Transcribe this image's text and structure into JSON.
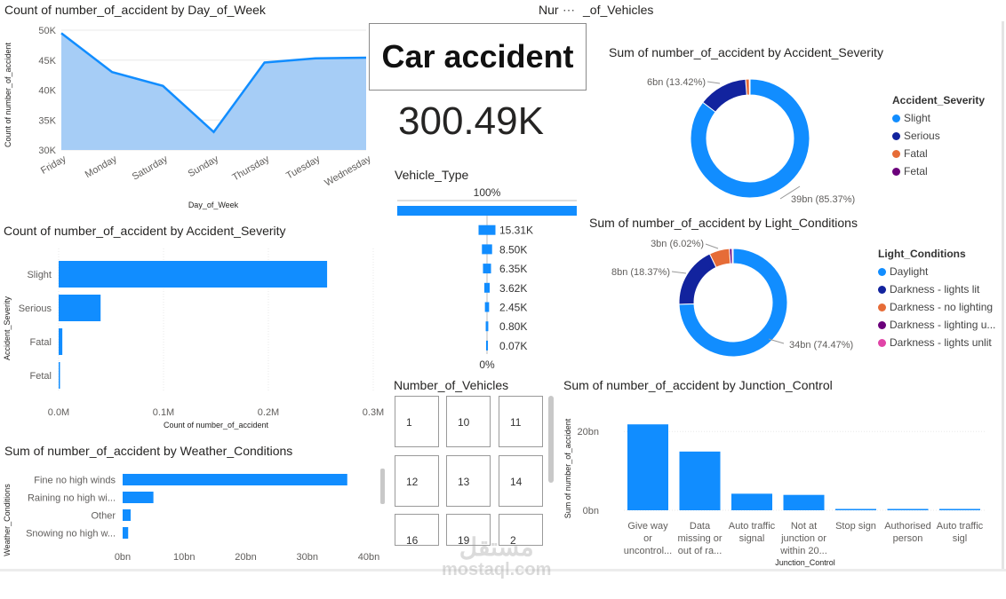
{
  "kpi": {
    "title": "Car accident",
    "value": "300.49K"
  },
  "header_partial": {
    "left": "Nur",
    "right": "_of_Vehicles"
  },
  "colors": {
    "accent": "#118DFF",
    "area_fill": "#a6cdf6",
    "dark_blue": "#12239E",
    "orange": "#E66C37",
    "purple": "#6B007B",
    "pink": "#E044A7",
    "grid": "#e8e8e8"
  },
  "chart_data": [
    {
      "id": "line_dow",
      "type": "area",
      "title": "Count of number_of_accident by Day_of_Week",
      "xlabel": "Day_of_Week",
      "ylabel": "Count of number_of_accident",
      "categories": [
        "Friday",
        "Monday",
        "Saturday",
        "Sunday",
        "Thursday",
        "Tuesday",
        "Wednesday"
      ],
      "values": [
        49500,
        43000,
        40700,
        33000,
        44600,
        45300,
        45400
      ],
      "ylim": [
        30000,
        50000
      ],
      "yticks": [
        "30K",
        "35K",
        "40K",
        "45K",
        "50K"
      ]
    },
    {
      "id": "bar_severity",
      "type": "bar",
      "title": "Count of number_of_accident by Accident_Severity",
      "xlabel": "Count of number_of_accident",
      "ylabel": "Accident_Severity",
      "categories": [
        "Slight",
        "Serious",
        "Fatal",
        "Fetal"
      ],
      "values": [
        256000,
        40000,
        3500,
        900
      ],
      "xlim": [
        0,
        300000
      ],
      "xticks": [
        "0.0M",
        "0.1M",
        "0.2M",
        "0.3M"
      ]
    },
    {
      "id": "bar_weather",
      "type": "bar",
      "title": "Sum of number_of_accident by Weather_Conditions",
      "xlabel": "",
      "ylabel": "Weather_Conditions",
      "categories": [
        "Fine no high winds",
        "Raining no high wi...",
        "Other",
        "Snowing no high w..."
      ],
      "values": [
        36.5,
        5.0,
        1.3,
        0.9
      ],
      "xlim": [
        0,
        40
      ],
      "xticks": [
        "0bn",
        "10bn",
        "20bn",
        "30bn",
        "40bn"
      ]
    },
    {
      "id": "funnel_vehicle",
      "type": "bar",
      "title": "Vehicle_Type",
      "top_label": "100%",
      "bottom_label": "0%",
      "values": [
        100,
        15.31,
        8.5,
        6.35,
        3.62,
        2.45,
        0.8,
        0.07
      ],
      "labels": [
        "",
        "15.31K",
        "8.50K",
        "6.35K",
        "3.62K",
        "2.45K",
        "0.80K",
        "0.07K"
      ]
    },
    {
      "id": "donut_severity",
      "type": "pie",
      "title": "Sum of number_of_accident by Accident_Severity",
      "legend_title": "Accident_Severity",
      "legend_position": "right",
      "slices": [
        {
          "name": "Slight",
          "value": 85.37,
          "color": "#118DFF"
        },
        {
          "name": "Serious",
          "value": 13.42,
          "color": "#12239E"
        },
        {
          "name": "Fatal",
          "value": 1.0,
          "color": "#E66C37"
        },
        {
          "name": "Fetal",
          "value": 0.21,
          "color": "#6B007B"
        }
      ],
      "labels": [
        "39bn (85.37%)",
        "6bn (13.42%)"
      ]
    },
    {
      "id": "donut_light",
      "type": "pie",
      "title": "Sum of number_of_accident by Light_Conditions",
      "legend_title": "Light_Conditions",
      "legend_position": "right",
      "slices": [
        {
          "name": "Daylight",
          "value": 74.47,
          "color": "#118DFF"
        },
        {
          "name": "Darkness - lights lit",
          "value": 18.37,
          "color": "#12239E"
        },
        {
          "name": "Darkness - no lighting",
          "value": 6.02,
          "color": "#E66C37"
        },
        {
          "name": "Darkness - lighting u...",
          "value": 0.8,
          "color": "#6B007B"
        },
        {
          "name": "Darkness - lights unlit",
          "value": 0.34,
          "color": "#E044A7"
        }
      ],
      "labels": [
        "34bn (74.47%)",
        "8bn (18.37%)",
        "3bn (6.02%)"
      ]
    },
    {
      "id": "bar_junction",
      "type": "bar",
      "title": "Sum of number_of_accident by Junction_Control",
      "xlabel": "Junction_Control",
      "ylabel": "Sum of number_of_accident",
      "categories": [
        [
          "Give way",
          "or",
          "uncontrol..."
        ],
        [
          "Data",
          "missing or",
          "out of ra..."
        ],
        [
          "Auto traffic",
          "signal"
        ],
        [
          "Not at",
          "junction or",
          "within 20..."
        ],
        [
          "Stop sign"
        ],
        [
          "Authorised",
          "person"
        ],
        [
          "Auto traffic",
          "sigl"
        ]
      ],
      "values": [
        21.8,
        14.9,
        4.2,
        3.9,
        0.3,
        0.2,
        0.15
      ],
      "ylim": [
        0,
        25
      ],
      "yticks": [
        {
          "v": 0,
          "t": "0bn"
        },
        {
          "v": 20,
          "t": "20bn"
        }
      ]
    }
  ],
  "slicer": {
    "title": "Number_of_Vehicles",
    "tiles": [
      "1",
      "10",
      "11",
      "12",
      "13",
      "14",
      "16",
      "19",
      "2"
    ]
  },
  "watermark": {
    "text": "mostaql.com"
  }
}
